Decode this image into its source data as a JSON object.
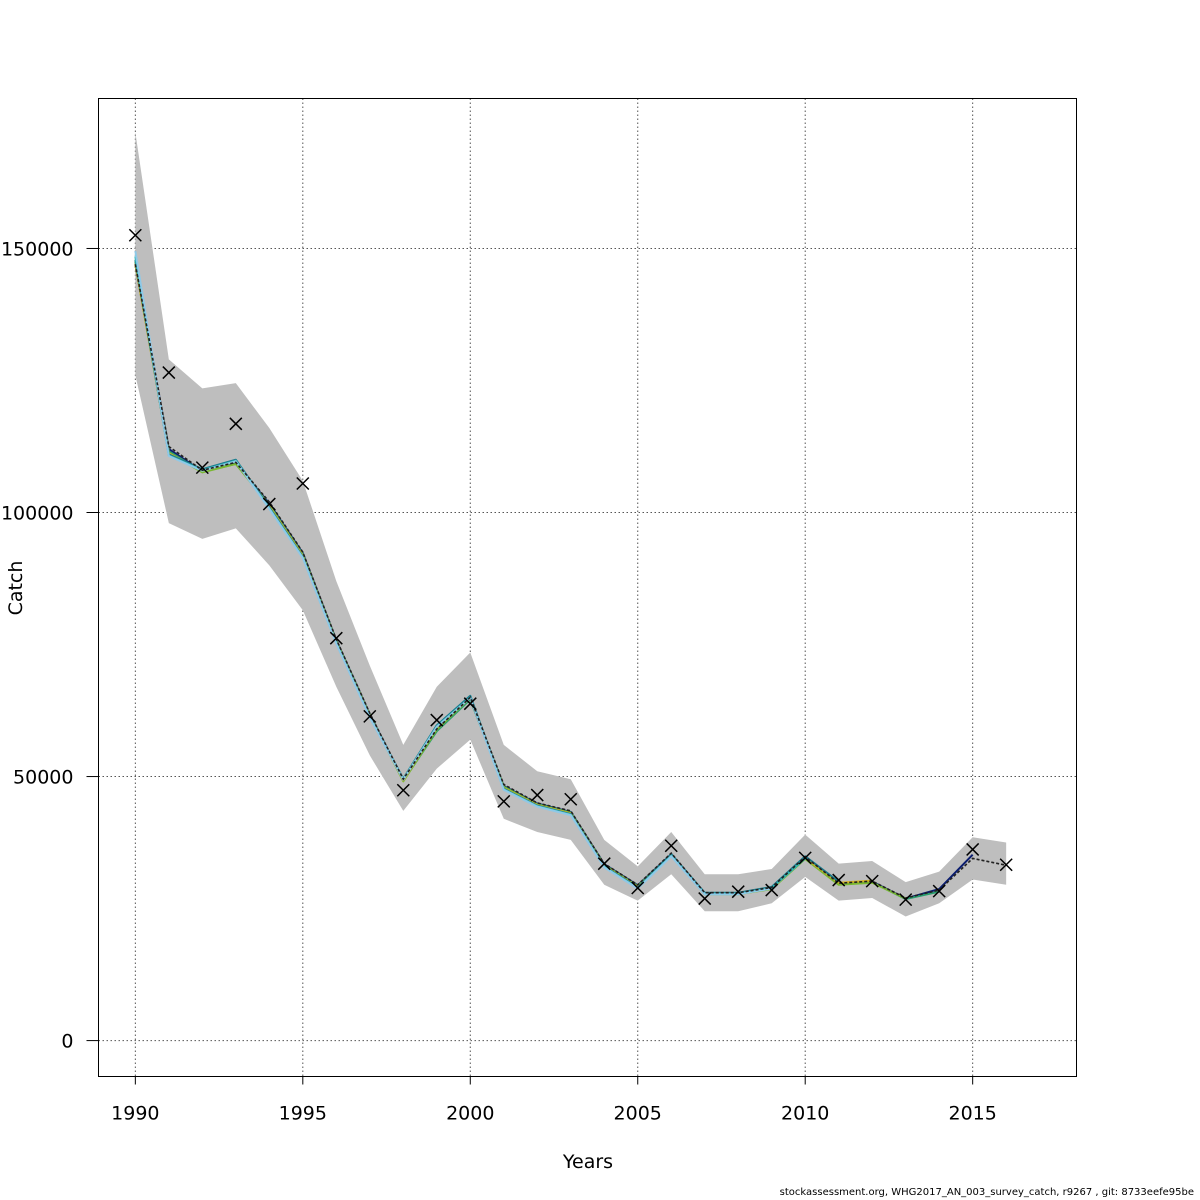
{
  "chart_data": {
    "type": "line",
    "xlabel": "Years",
    "ylabel": "Catch",
    "xlim": [
      1988.9,
      2018.1
    ],
    "ylim": [
      -6800,
      178400
    ],
    "x_ticks": [
      1990,
      1995,
      2000,
      2005,
      2010,
      2015
    ],
    "y_ticks": [
      0,
      50000,
      100000,
      150000
    ],
    "x_tick_labels": [
      "1990",
      "1995",
      "2000",
      "2005",
      "2010",
      "2015"
    ],
    "y_tick_labels": [
      "0",
      "50000",
      "100000",
      "150000"
    ],
    "grid": true,
    "colors": {
      "band": "#bebebe",
      "grid": "#555555",
      "observed_marker": "#000000",
      "retro_lines": [
        "#0b1d6e",
        "#2a9d6e",
        "#7ab831",
        "#d8b323",
        "#1b7a8c",
        "#2fb5b5",
        "#8ec9e8",
        "#3a2b8c"
      ]
    },
    "band": {
      "x": [
        1990,
        1991,
        1992,
        1993,
        1994,
        1995,
        1996,
        1997,
        1998,
        1999,
        2000,
        2001,
        2002,
        2003,
        2004,
        2005,
        2006,
        2007,
        2008,
        2009,
        2010,
        2011,
        2012,
        2013,
        2014,
        2015,
        2016
      ],
      "upper": [
        172000,
        129000,
        123500,
        124500,
        116000,
        106000,
        87000,
        71000,
        56000,
        67000,
        73500,
        56000,
        51000,
        49500,
        38000,
        33000,
        39500,
        31500,
        31500,
        32500,
        39000,
        33500,
        34000,
        30000,
        32000,
        38500,
        37500
      ],
      "lower": [
        126000,
        98000,
        95000,
        97000,
        90000,
        81500,
        67000,
        54000,
        43500,
        51500,
        57000,
        42000,
        39500,
        38000,
        29500,
        26500,
        31500,
        24500,
        24500,
        26000,
        31000,
        26500,
        27000,
        23500,
        26000,
        30500,
        29500
      ]
    },
    "series": [
      {
        "x": [
          1990,
          1991,
          1992,
          1993,
          1994,
          1995,
          1996,
          1997,
          1998,
          1999,
          2000,
          2001,
          2002,
          2003,
          2004,
          2005,
          2006,
          2007,
          2008,
          2009,
          2010,
          2011,
          2012,
          2013,
          2014,
          2015,
          2016
        ],
        "values": [
          147000,
          112500,
          108000,
          109500,
          102000,
          92500,
          76000,
          62000,
          49500,
          59000,
          65000,
          48500,
          45000,
          43500,
          33500,
          29500,
          35500,
          28000,
          28000,
          29000,
          34800,
          29800,
          30200,
          27000,
          28500,
          34500,
          33200
        ],
        "style": "dashed"
      },
      {
        "x": [
          1990,
          1991,
          1992,
          1993,
          1994,
          1995,
          1996,
          1997,
          1998,
          1999,
          2000,
          2001,
          2002,
          2003,
          2004,
          2005,
          2006,
          2007,
          2008,
          2009,
          2010,
          2011,
          2012,
          2013,
          2014,
          2015
        ],
        "values": [
          147000,
          112000,
          107800,
          109300,
          101700,
          92300,
          75800,
          61800,
          49300,
          58800,
          64700,
          48200,
          44900,
          43300,
          33400,
          29400,
          35300,
          27900,
          27900,
          28900,
          34600,
          29700,
          30100,
          26900,
          28700,
          35200
        ],
        "style": "solid"
      },
      {
        "x": [
          1990,
          1991,
          1992,
          1993,
          1994,
          1995,
          1996,
          1997,
          1998,
          1999,
          2000,
          2001,
          2002,
          2003,
          2004,
          2005,
          2006,
          2007,
          2008,
          2009,
          2010,
          2011,
          2012,
          2013,
          2014
        ],
        "values": [
          147000,
          111600,
          107700,
          109200,
          101500,
          92100,
          75700,
          61700,
          49200,
          58600,
          64600,
          48100,
          44800,
          43200,
          33300,
          29300,
          35200,
          27800,
          27800,
          28800,
          34500,
          29600,
          30000,
          26800,
          28200
        ],
        "style": "solid"
      },
      {
        "x": [
          1990,
          1991,
          1992,
          1993,
          1994,
          1995,
          1996,
          1997,
          1998,
          1999,
          2000,
          2001,
          2002,
          2003,
          2004,
          2005,
          2006,
          2007,
          2008,
          2009,
          2010,
          2011,
          2012,
          2013
        ],
        "values": [
          147500,
          111300,
          107600,
          109200,
          101300,
          91900,
          75600,
          61600,
          49100,
          58900,
          64900,
          48000,
          44700,
          43100,
          33200,
          29200,
          35100,
          27700,
          27700,
          28700,
          34400,
          29500,
          29900,
          26900
        ],
        "style": "solid"
      },
      {
        "x": [
          1990,
          1991,
          1992,
          1993,
          1994,
          1995,
          1996,
          1997,
          1998,
          1999,
          2000,
          2001,
          2002,
          2003,
          2004,
          2005,
          2006,
          2007,
          2008,
          2009,
          2010,
          2011,
          2012
        ],
        "values": [
          147000,
          111200,
          107900,
          109700,
          101200,
          91800,
          75500,
          61500,
          49300,
          59300,
          65100,
          47800,
          44600,
          43000,
          33100,
          29100,
          35000,
          27800,
          27800,
          28800,
          34600,
          29900,
          30300
        ],
        "style": "solid"
      },
      {
        "x": [
          1990,
          1991,
          1992,
          1993,
          1994,
          1995,
          1996,
          1997,
          1998,
          1999,
          2000,
          2001,
          2002,
          2003,
          2004,
          2005,
          2006,
          2007,
          2008,
          2009,
          2010,
          2011
        ],
        "values": [
          147800,
          111000,
          108200,
          110000,
          101000,
          91600,
          75400,
          61400,
          49600,
          59700,
          65300,
          47700,
          44500,
          42900,
          33000,
          29000,
          35300,
          28000,
          28000,
          29100,
          34900,
          30100
        ],
        "style": "solid"
      },
      {
        "x": [
          1990,
          1991,
          1992,
          1993,
          1994,
          1995,
          1996,
          1997,
          1998,
          1999,
          2000,
          2001,
          2002,
          2003,
          2004,
          2005,
          2006,
          2007,
          2008,
          2009,
          2010
        ],
        "values": [
          148500,
          110800,
          108000,
          109800,
          100800,
          91500,
          75300,
          61300,
          49500,
          59500,
          65000,
          47600,
          44400,
          42800,
          32900,
          28900,
          35000,
          27800,
          27800,
          28900,
          34500
        ],
        "style": "solid"
      },
      {
        "x": [
          1990,
          1991,
          1992,
          1993,
          1994,
          1995,
          1996,
          1997,
          1998,
          1999,
          2000,
          2001,
          2002,
          2003,
          2004,
          2005,
          2006,
          2007,
          2008,
          2009
        ],
        "values": [
          149500,
          110700,
          107900,
          109700,
          100700,
          91400,
          75200,
          61200,
          49400,
          59400,
          64900,
          47500,
          44300,
          42700,
          32800,
          28800,
          34900,
          27700,
          27700,
          28800
        ],
        "style": "solid"
      }
    ],
    "observed": {
      "x": [
        1990,
        1991,
        1992,
        1993,
        1994,
        1995,
        1996,
        1997,
        1998,
        1999,
        2000,
        2001,
        2002,
        2003,
        2004,
        2005,
        2006,
        2007,
        2008,
        2009,
        2010,
        2011,
        2012,
        2013,
        2014,
        2015,
        2016
      ],
      "values": [
        152500,
        126500,
        108500,
        116800,
        101600,
        105500,
        76200,
        61400,
        47400,
        60700,
        63800,
        45300,
        46500,
        45700,
        33500,
        28900,
        36900,
        26900,
        28200,
        28500,
        34600,
        30400,
        30200,
        26700,
        28300,
        36200,
        33300
      ],
      "marker": "x"
    }
  },
  "footer": {
    "text": "stockassessment.org, WHG2017_AN_003_survey_catch, r9267 , git: 8733eefe95be"
  }
}
